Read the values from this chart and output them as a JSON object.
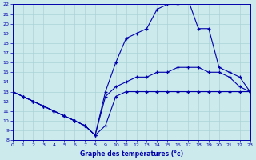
{
  "title": "Graphe des températures (°c)",
  "xlim": [
    0,
    23
  ],
  "ylim": [
    8,
    22
  ],
  "xticks": [
    0,
    1,
    2,
    3,
    4,
    5,
    6,
    7,
    8,
    9,
    10,
    11,
    12,
    13,
    14,
    15,
    16,
    17,
    18,
    19,
    20,
    21,
    22,
    23
  ],
  "yticks": [
    8,
    9,
    10,
    11,
    12,
    13,
    14,
    15,
    16,
    17,
    18,
    19,
    20,
    21,
    22
  ],
  "bg_color": "#cce9ec",
  "line_color": "#0000aa",
  "grid_color": "#aad4d8",
  "line_min_x": [
    0,
    1,
    2,
    3,
    4,
    5,
    6,
    7,
    8,
    9,
    10,
    11,
    12,
    13,
    14,
    15,
    16,
    17,
    18,
    19,
    20,
    21,
    22,
    23
  ],
  "line_min_y": [
    13.0,
    12.5,
    12.0,
    11.5,
    11.0,
    10.5,
    10.0,
    9.5,
    8.5,
    9.5,
    12.5,
    13.0,
    13.0,
    13.0,
    13.0,
    13.0,
    13.0,
    13.0,
    13.0,
    13.0,
    13.0,
    13.0,
    13.0,
    13.0
  ],
  "line_avg_x": [
    0,
    1,
    2,
    3,
    4,
    5,
    6,
    7,
    8,
    9,
    10,
    11,
    12,
    13,
    14,
    15,
    16,
    17,
    18,
    19,
    20,
    21,
    22,
    23
  ],
  "line_avg_y": [
    13.0,
    12.5,
    12.0,
    11.5,
    11.0,
    10.5,
    10.0,
    9.5,
    8.5,
    12.5,
    13.5,
    14.0,
    14.5,
    14.5,
    15.0,
    15.0,
    15.5,
    15.5,
    15.5,
    15.0,
    15.0,
    14.5,
    13.5,
    13.0
  ],
  "line_max_x": [
    0,
    1,
    2,
    3,
    4,
    5,
    6,
    7,
    8,
    9,
    10,
    11,
    12,
    13,
    14,
    15,
    16,
    17,
    18,
    19,
    20,
    21,
    22,
    23
  ],
  "line_max_y": [
    13.0,
    12.5,
    12.0,
    11.5,
    11.0,
    10.5,
    10.0,
    9.5,
    8.5,
    13.0,
    16.0,
    18.5,
    19.0,
    19.5,
    21.5,
    22.0,
    22.0,
    22.5,
    19.5,
    19.5,
    15.5,
    15.0,
    14.5,
    13.0
  ]
}
